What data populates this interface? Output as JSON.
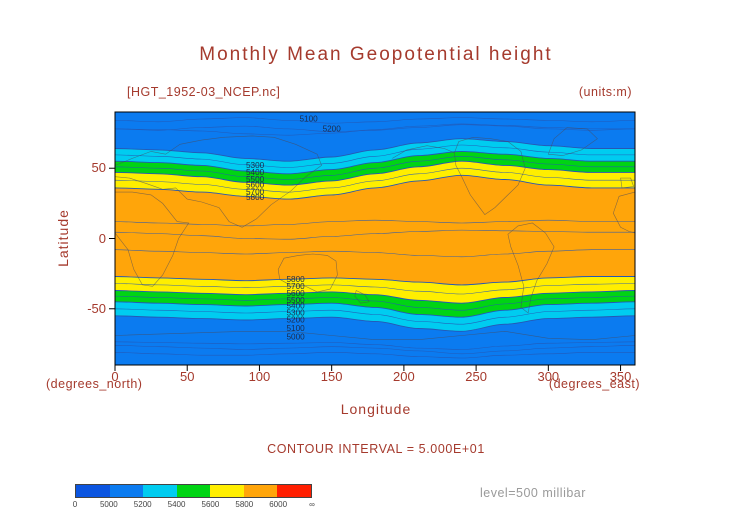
{
  "title": "Monthly Mean Geopotential height",
  "dataset_label": "[HGT_1952-03_NCEP.nc]",
  "units_label": "(units:m)",
  "contour_interval_label": "CONTOUR INTERVAL = 5.000E+01",
  "level_label": "level=500 millibar",
  "axes": {
    "x": {
      "label": "Longitude",
      "sublabel": "(degrees_east)",
      "range": [
        0,
        360
      ],
      "ticks": [
        0,
        50,
        100,
        150,
        200,
        250,
        300,
        350
      ]
    },
    "y": {
      "label": "Latitude",
      "sublabel": "(degrees_north)",
      "range": [
        -90,
        90
      ],
      "ticks": [
        50,
        0,
        -50
      ]
    }
  },
  "colors": {
    "text": "#a53a2d",
    "frame": "#000000",
    "contour_line": "#2558b4",
    "coastline": "#4a4a5a",
    "contour_label_text": "#1c2b4a",
    "level_text": "#9a9a9a"
  },
  "chart_data": {
    "type": "heatmap",
    "title": "Monthly Mean Geopotential height",
    "xlabel": "Longitude (degrees_east)",
    "ylabel": "Latitude (degrees_north)",
    "units": "m",
    "level": "500 millibar",
    "contour_interval": 50,
    "x_range": [
      0,
      360
    ],
    "y_range": [
      -90,
      90
    ],
    "lon_samples": [
      0,
      30,
      60,
      90,
      120,
      150,
      180,
      210,
      240,
      270,
      300,
      330,
      360
    ],
    "boundaries": [
      {
        "level": 5200,
        "hemisphere": "N",
        "lats": [
          64,
          63,
          61,
          57,
          55,
          58,
          63,
          68,
          71,
          69,
          66,
          64,
          64
        ]
      },
      {
        "level": 5400,
        "hemisphere": "N",
        "lats": [
          55,
          54,
          52,
          48,
          46,
          49,
          54,
          59,
          62,
          60,
          57,
          55,
          55
        ]
      },
      {
        "level": 5600,
        "hemisphere": "N",
        "lats": [
          47,
          46,
          44,
          40,
          38,
          41,
          46,
          51,
          55,
          52,
          49,
          47,
          47
        ]
      },
      {
        "level": 5800,
        "hemisphere": "N",
        "lats": [
          36,
          35,
          33,
          30,
          28,
          31,
          36,
          41,
          45,
          42,
          38,
          36,
          36
        ]
      },
      {
        "level": 5800,
        "hemisphere": "S",
        "lats": [
          -27,
          -28,
          -29,
          -30,
          -29,
          -28,
          -29,
          -31,
          -33,
          -31,
          -28,
          -27,
          -27
        ]
      },
      {
        "level": 5600,
        "hemisphere": "S",
        "lats": [
          -37,
          -38,
          -39,
          -40,
          -39,
          -38,
          -40,
          -44,
          -46,
          -42,
          -39,
          -38,
          -37
        ]
      },
      {
        "level": 5400,
        "hemisphere": "S",
        "lats": [
          -45,
          -46,
          -47,
          -48,
          -47,
          -46,
          -49,
          -54,
          -56,
          -51,
          -47,
          -46,
          -45
        ]
      },
      {
        "level": 5200,
        "hemisphere": "S",
        "lats": [
          -55,
          -56,
          -57,
          -58,
          -57,
          -56,
          -59,
          -64,
          -66,
          -61,
          -57,
          -56,
          -55
        ]
      }
    ],
    "band_colors": [
      "#0b7bf0",
      "#00ccf0",
      "#00d414",
      "#ffee00",
      "#ffa50a",
      "#ffee00",
      "#00d414",
      "#00ccf0",
      "#0b7bf0"
    ],
    "extra_contour_lines": [
      {
        "lats": [
          84,
          83,
          85,
          86,
          84,
          82,
          83,
          85,
          86,
          85,
          84,
          83,
          84
        ]
      },
      {
        "lats": [
          78,
          77,
          79,
          80,
          78,
          76,
          77,
          79,
          81,
          80,
          78,
          77,
          78
        ]
      },
      {
        "lats": [
          -76,
          -77,
          -78,
          -79,
          -78,
          -77,
          -78,
          -80,
          -82,
          -80,
          -78,
          -77,
          -76
        ]
      },
      {
        "lats": [
          -81,
          -82,
          -83,
          -83,
          -82,
          -81,
          -82,
          -84,
          -85,
          -83,
          -82,
          -81,
          -81
        ]
      },
      {
        "lats": [
          12,
          11,
          10,
          9,
          10,
          12,
          13,
          12,
          11,
          12,
          13,
          12,
          12
        ]
      },
      {
        "lats": [
          -8,
          -9,
          -10,
          -11,
          -10,
          -9,
          -10,
          -12,
          -13,
          -11,
          -9,
          -8,
          -8
        ]
      }
    ],
    "contour_labels": [
      {
        "text": "5100",
        "lon": 134,
        "lat": 85
      },
      {
        "text": "5200",
        "lon": 150,
        "lat": 78
      },
      {
        "text": "5300",
        "lon": 97,
        "lat": 52
      },
      {
        "text": "5400",
        "lon": 97,
        "lat": 47
      },
      {
        "text": "5500",
        "lon": 97,
        "lat": 42
      },
      {
        "text": "5600",
        "lon": 97,
        "lat": 38
      },
      {
        "text": "5700",
        "lon": 97,
        "lat": 33
      },
      {
        "text": "5800",
        "lon": 97,
        "lat": 29
      },
      {
        "text": "5800",
        "lon": 125,
        "lat": -29
      },
      {
        "text": "5700",
        "lon": 125,
        "lat": -34
      },
      {
        "text": "5600",
        "lon": 125,
        "lat": -39
      },
      {
        "text": "5500",
        "lon": 125,
        "lat": -44
      },
      {
        "text": "5400",
        "lon": 125,
        "lat": -48
      },
      {
        "text": "5300",
        "lon": 125,
        "lat": -53
      },
      {
        "text": "5200",
        "lon": 125,
        "lat": -58
      },
      {
        "text": "5100",
        "lon": 125,
        "lat": -64
      },
      {
        "text": "5000",
        "lon": 125,
        "lat": -70
      }
    ],
    "coastlines": [
      {
        "closed": true,
        "pts": [
          [
            0,
            52
          ],
          [
            12,
            57
          ],
          [
            25,
            62
          ],
          [
            35,
            60
          ],
          [
            45,
            67
          ],
          [
            60,
            70
          ],
          [
            75,
            72
          ],
          [
            95,
            73
          ],
          [
            110,
            72
          ],
          [
            125,
            67
          ],
          [
            140,
            60
          ],
          [
            143,
            52
          ],
          [
            132,
            44
          ],
          [
            122,
            34
          ],
          [
            108,
            24
          ],
          [
            98,
            14
          ],
          [
            88,
            8
          ],
          [
            79,
            12
          ],
          [
            72,
            22
          ],
          [
            60,
            26
          ],
          [
            50,
            28
          ],
          [
            42,
            36
          ],
          [
            33,
            35
          ],
          [
            22,
            39
          ],
          [
            10,
            43
          ],
          [
            0,
            44
          ]
        ]
      },
      {
        "closed": true,
        "pts": [
          [
            0,
            33
          ],
          [
            12,
            33
          ],
          [
            25,
            31
          ],
          [
            33,
            25
          ],
          [
            43,
            12
          ],
          [
            51,
            11
          ],
          [
            44,
            0
          ],
          [
            40,
            -12
          ],
          [
            33,
            -26
          ],
          [
            26,
            -34
          ],
          [
            19,
            -33
          ],
          [
            13,
            -22
          ],
          [
            9,
            -8
          ],
          [
            0,
            4
          ]
        ]
      },
      {
        "closed": true,
        "pts": [
          [
            360,
            33
          ],
          [
            349,
            30
          ],
          [
            345,
            18
          ],
          [
            350,
            8
          ],
          [
            356,
            5
          ],
          [
            360,
            4
          ]
        ]
      },
      {
        "closed": true,
        "pts": [
          [
            350,
            43
          ],
          [
            357,
            43
          ],
          [
            359,
            37
          ],
          [
            351,
            36
          ]
        ]
      },
      {
        "closed": true,
        "pts": [
          [
            113,
            -22
          ],
          [
            117,
            -14
          ],
          [
            127,
            -12
          ],
          [
            137,
            -11
          ],
          [
            147,
            -12
          ],
          [
            153,
            -16
          ],
          [
            154,
            -26
          ],
          [
            149,
            -36
          ],
          [
            140,
            -38
          ],
          [
            130,
            -33
          ],
          [
            121,
            -33
          ],
          [
            114,
            -29
          ]
        ]
      },
      {
        "closed": true,
        "pts": [
          [
            235,
            61
          ],
          [
            238,
            69
          ],
          [
            248,
            72
          ],
          [
            260,
            71
          ],
          [
            272,
            69
          ],
          [
            281,
            62
          ],
          [
            284,
            50
          ],
          [
            279,
            38
          ],
          [
            272,
            31
          ],
          [
            263,
            22
          ],
          [
            256,
            17
          ],
          [
            251,
            24
          ],
          [
            246,
            31
          ],
          [
            240,
            44
          ],
          [
            236,
            52
          ]
        ]
      },
      {
        "closed": false,
        "pts": [
          [
            192,
            57
          ],
          [
            202,
            63
          ],
          [
            216,
            66
          ],
          [
            228,
            64
          ],
          [
            235,
            61
          ]
        ]
      },
      {
        "closed": true,
        "pts": [
          [
            300,
            60
          ],
          [
            304,
            71
          ],
          [
            313,
            79
          ],
          [
            327,
            78
          ],
          [
            334,
            71
          ],
          [
            323,
            63
          ],
          [
            310,
            59
          ]
        ]
      },
      {
        "closed": true,
        "pts": [
          [
            279,
            9
          ],
          [
            289,
            11
          ],
          [
            298,
            4
          ],
          [
            304,
            -6
          ],
          [
            299,
            -18
          ],
          [
            292,
            -30
          ],
          [
            288,
            -42
          ],
          [
            286,
            -53
          ],
          [
            281,
            -49
          ],
          [
            283,
            -34
          ],
          [
            279,
            -19
          ],
          [
            274,
            -6
          ],
          [
            272,
            3
          ]
        ]
      },
      {
        "closed": true,
        "pts": [
          [
            167,
            -37
          ],
          [
            173,
            -40
          ],
          [
            176,
            -45
          ],
          [
            170,
            -46
          ],
          [
            166,
            -41
          ]
        ]
      },
      {
        "closed": false,
        "pts": [
          [
            0,
            -69
          ],
          [
            30,
            -68
          ],
          [
            60,
            -67
          ],
          [
            90,
            -66
          ],
          [
            120,
            -66
          ],
          [
            150,
            -69
          ],
          [
            180,
            -72
          ],
          [
            210,
            -72
          ],
          [
            240,
            -69
          ],
          [
            270,
            -66
          ],
          [
            300,
            -71
          ],
          [
            330,
            -72
          ],
          [
            360,
            -69
          ]
        ]
      }
    ],
    "colorbar": {
      "labels": [
        "0",
        "5000",
        "5200",
        "5400",
        "5600",
        "5800",
        "6000",
        "∞"
      ],
      "segment_colors": [
        "#0b55e0",
        "#0b7bf0",
        "#00ccf0",
        "#00d414",
        "#ffee00",
        "#ffa50a",
        "#ff1e00"
      ]
    }
  }
}
